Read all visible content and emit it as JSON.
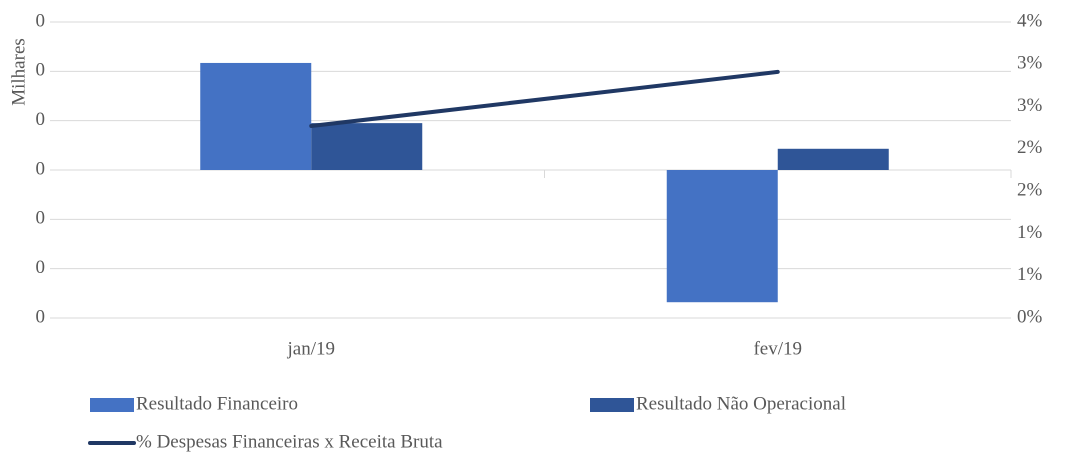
{
  "chart_data": {
    "type": "bar",
    "y_label": "Milhares",
    "categories": [
      "jan/19",
      "fev/19"
    ],
    "series": [
      {
        "name": "Resultado Financeiro",
        "color": "#4472c4",
        "values": [
          0.217,
          -0.268
        ]
      },
      {
        "name": "Resultado Não Operacional",
        "color": "#2f5597",
        "values": [
          0.095,
          0.043
        ]
      },
      {
        "name": "% Despesas Financeiras x Receita Bruta",
        "color": "#203864",
        "type": "line",
        "axis": "y2",
        "values": [
          2.27,
          2.91
        ]
      }
    ],
    "ylim": [
      -0.3,
      0.3
    ],
    "yticks": [
      {
        "value": -0.3,
        "label": "0"
      },
      {
        "value": -0.2,
        "label": "0"
      },
      {
        "value": -0.1,
        "label": "0"
      },
      0,
      {
        "value": 0.1,
        "label": "0"
      },
      {
        "value": 0.2,
        "label": "0"
      },
      {
        "value": 0.3,
        "label": "0"
      }
    ],
    "y2lim": [
      0,
      3.5
    ],
    "y2ticks": [
      {
        "value": 0,
        "label": "0%"
      },
      {
        "value": 0.5,
        "label": "1%"
      },
      {
        "value": 1,
        "label": "1%"
      },
      {
        "value": 1.5,
        "label": "2%"
      },
      {
        "value": 2,
        "label": "2%"
      },
      {
        "value": 2.5,
        "label": "3%"
      },
      {
        "value": 3,
        "label": "3%"
      },
      {
        "value": 3.5,
        "label": "4%"
      }
    ],
    "grid": true,
    "legend": "bottom"
  }
}
